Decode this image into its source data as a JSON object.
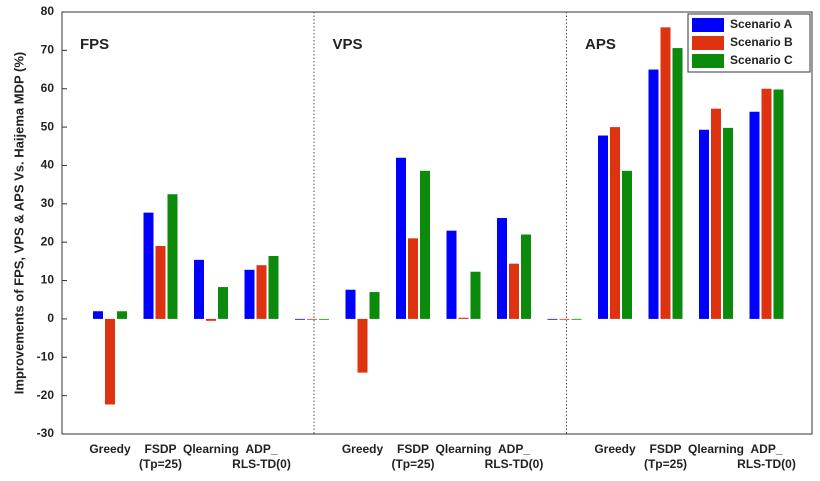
{
  "chart_data": {
    "type": "bar",
    "y_label": "Improvements of FPS, VPS & APS Vs. Haijema MDP (%)",
    "annotations": [
      "FPS",
      "VPS",
      "APS"
    ],
    "categories": [
      "Greedy",
      "FSDP\n(Tp=25)",
      "Qlearning",
      "ADP_\nRLS-TD(0)",
      null,
      "Greedy",
      "FSDP\n(Tp=25)",
      "Qlearning",
      "ADP_\nRLS-TD(0)",
      null,
      "Greedy",
      "FSDP\n(Tp=25)",
      "Qlearning",
      "ADP_\nRLS-TD(0)"
    ],
    "series": [
      {
        "name": "Scenario A",
        "color": "#0000ff",
        "values": [
          2,
          27.7,
          15.4,
          12.8,
          0,
          7.6,
          42,
          23,
          26.3,
          0,
          47.8,
          65,
          49.3,
          54
        ]
      },
      {
        "name": "Scenario B",
        "color": "#dd3311",
        "values": [
          -22.3,
          19,
          -0.5,
          14,
          0,
          -14,
          21,
          0.3,
          14.4,
          0,
          50,
          76,
          54.8,
          60
        ]
      },
      {
        "name": "Scenario C",
        "color": "#0b8a0b",
        "values": [
          2,
          32.5,
          8.3,
          16.4,
          0,
          7,
          38.6,
          12.3,
          22,
          0,
          38.6,
          70.6,
          49.8,
          59.8
        ]
      }
    ],
    "ylim": [
      -30,
      80
    ],
    "yticks": [
      -30,
      -20,
      -10,
      0,
      10,
      20,
      30,
      40,
      50,
      60,
      70,
      80
    ],
    "legend": "top-right"
  }
}
